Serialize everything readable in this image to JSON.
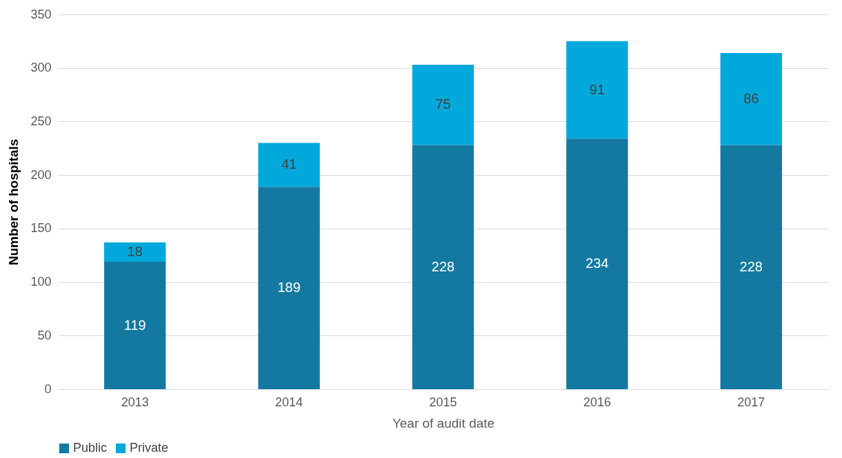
{
  "chart_data": {
    "type": "bar",
    "xlabel": "Year of audit date",
    "ylabel": "Number of hospitals",
    "categories": [
      "2013",
      "2014",
      "2015",
      "2016",
      "2017"
    ],
    "series": [
      {
        "name": "Public",
        "color": "#1479a0",
        "values": [
          119,
          189,
          228,
          234,
          228
        ]
      },
      {
        "name": "Private",
        "color": "#00a8dc",
        "values": [
          18,
          41,
          75,
          91,
          86
        ]
      }
    ],
    "stacked": true,
    "data_labels": true,
    "ylim": [
      0,
      350
    ],
    "yticks": [
      0,
      50,
      100,
      150,
      200,
      250,
      300,
      350
    ],
    "grid": "y",
    "legend": "bottom"
  }
}
